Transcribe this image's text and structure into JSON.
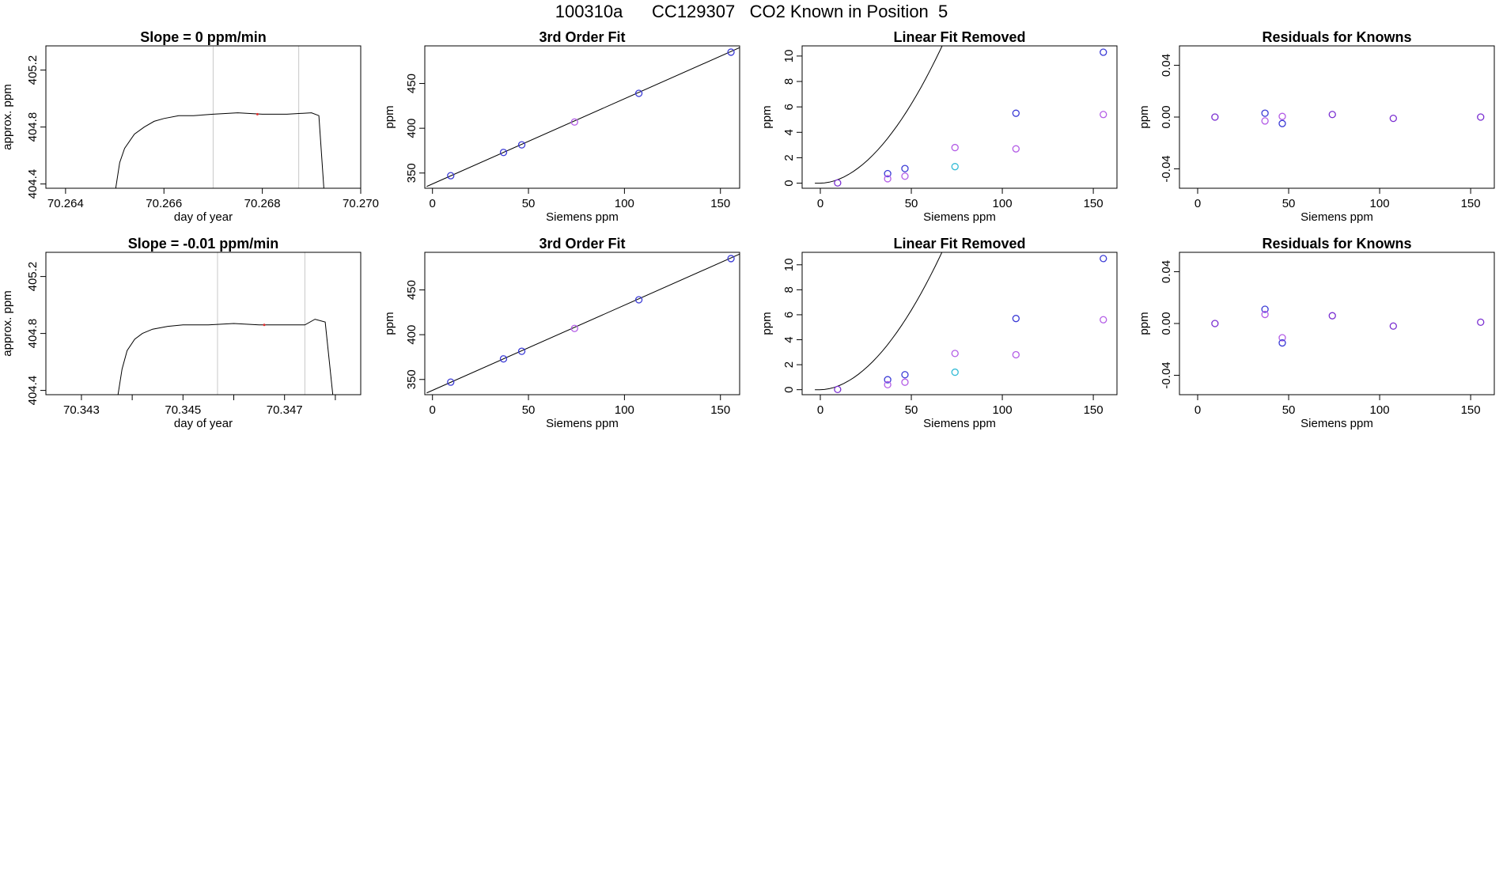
{
  "suptitle": "100310a      CC129307   CO2 Known in Position  5",
  "colors": {
    "blue": "#3b3bd6",
    "violet": "#b35ce6",
    "cyan": "#33bbd6",
    "purple": "#7a2ed1",
    "red": "#e03030",
    "gray": "#c8c8c8"
  },
  "chart_data": [
    {
      "id": "r1c1",
      "type": "line",
      "title": "Slope =  0  ppm/min",
      "xlabel": "day of year",
      "ylabel": "approx. ppm",
      "xlim": [
        70.2636,
        70.27
      ],
      "ylim": [
        404.37,
        405.37
      ],
      "xticks": [
        70.264,
        70.266,
        70.268,
        70.27
      ],
      "xtick_labels": [
        "70.264",
        "70.266",
        "70.268",
        "70.270"
      ],
      "yticks": [
        404.4,
        404.8,
        405.2
      ],
      "ytick_labels": [
        "404.4",
        "404.8",
        "405.2"
      ],
      "vlines": [
        70.267,
        70.26874
      ],
      "series": [
        {
          "x": [
            70.26502,
            70.2651,
            70.2652,
            70.2654,
            70.2656,
            70.2658,
            70.266,
            70.2663,
            70.2666,
            70.267,
            70.2675,
            70.268,
            70.2685,
            70.269,
            70.26915,
            70.26925
          ],
          "y": [
            404.37,
            404.55,
            404.65,
            404.75,
            404.8,
            404.84,
            404.86,
            404.88,
            404.88,
            404.89,
            404.9,
            404.89,
            404.89,
            404.9,
            404.88,
            404.37
          ]
        }
      ],
      "markers": [
        {
          "x": 70.2679,
          "y": 404.89,
          "color": "red"
        }
      ]
    },
    {
      "id": "r1c2",
      "type": "scatter",
      "title": "3rd Order Fit",
      "xlabel": "Siemens ppm",
      "ylabel": "ppm",
      "xlim": [
        -4,
        160
      ],
      "ylim": [
        333,
        492
      ],
      "xticks": [
        0,
        50,
        100,
        150
      ],
      "xtick_labels": [
        "0",
        "50",
        "100",
        "150"
      ],
      "yticks": [
        350,
        400,
        450
      ],
      "ytick_labels": [
        "350",
        "400",
        "450"
      ],
      "fit": {
        "x": [
          -3,
          160
        ],
        "y": [
          335,
          490
        ]
      },
      "points": [
        {
          "x": 9.5,
          "y": 347,
          "color": "blue"
        },
        {
          "x": 37,
          "y": 373,
          "color": "blue"
        },
        {
          "x": 46.5,
          "y": 381.5,
          "color": "blue"
        },
        {
          "x": 74,
          "y": 407,
          "color": "violet"
        },
        {
          "x": 107.5,
          "y": 439,
          "color": "blue"
        },
        {
          "x": 155.5,
          "y": 485,
          "color": "blue"
        }
      ]
    },
    {
      "id": "r1c3",
      "type": "scatter",
      "title": "Linear Fit Removed",
      "xlabel": "Siemens ppm",
      "ylabel": "ppm",
      "xlim": [
        -10,
        163
      ],
      "ylim": [
        -0.4,
        10.8
      ],
      "xticks": [
        0,
        50,
        100,
        150
      ],
      "xtick_labels": [
        "0",
        "50",
        "100",
        "150"
      ],
      "yticks": [
        0,
        2,
        4,
        6,
        8,
        10
      ],
      "ytick_labels": [
        "0",
        "2",
        "4",
        "6",
        "8",
        "10"
      ],
      "fit_power": {
        "from": -3,
        "to": 156,
        "a": 0.0006,
        "b": 0.0034,
        "p": 1.85
      },
      "points": [
        {
          "x": 9.5,
          "y": 0.02,
          "color": "purple"
        },
        {
          "x": 37,
          "y": 0.75,
          "color": "blue"
        },
        {
          "x": 37,
          "y": 0.35,
          "color": "violet"
        },
        {
          "x": 46.5,
          "y": 1.15,
          "color": "blue"
        },
        {
          "x": 46.5,
          "y": 0.55,
          "color": "violet"
        },
        {
          "x": 74,
          "y": 2.8,
          "color": "violet"
        },
        {
          "x": 74,
          "y": 1.3,
          "color": "cyan"
        },
        {
          "x": 107.5,
          "y": 5.5,
          "color": "blue"
        },
        {
          "x": 107.5,
          "y": 2.7,
          "color": "violet"
        },
        {
          "x": 155.5,
          "y": 10.3,
          "color": "blue"
        },
        {
          "x": 155.5,
          "y": 5.4,
          "color": "violet"
        }
      ]
    },
    {
      "id": "r1c4",
      "type": "scatter",
      "title": "Residuals for Knowns",
      "xlabel": "Siemens ppm",
      "ylabel": "ppm",
      "xlim": [
        -10,
        163
      ],
      "ylim": [
        -0.055,
        0.055
      ],
      "xticks": [
        0,
        50,
        100,
        150
      ],
      "xtick_labels": [
        "0",
        "50",
        "100",
        "150"
      ],
      "yticks": [
        -0.04,
        0,
        0.04
      ],
      "ytick_labels": [
        "-0.04",
        "0.00",
        "0.04"
      ],
      "points": [
        {
          "x": 9.5,
          "y": 0.0,
          "color": "purple"
        },
        {
          "x": 37,
          "y": 0.003,
          "color": "blue"
        },
        {
          "x": 37,
          "y": -0.003,
          "color": "violet"
        },
        {
          "x": 46.5,
          "y": 0.0005,
          "color": "violet"
        },
        {
          "x": 46.5,
          "y": -0.005,
          "color": "blue"
        },
        {
          "x": 74,
          "y": 0.002,
          "color": "purple"
        },
        {
          "x": 107.5,
          "y": -0.001,
          "color": "purple"
        },
        {
          "x": 155.5,
          "y": 0.0,
          "color": "purple"
        }
      ]
    },
    {
      "id": "r2c1",
      "type": "line",
      "title": "Slope =  -0.01  ppm/min",
      "xlabel": "day of year",
      "ylabel": "approx. ppm",
      "xlim": [
        70.3423,
        70.3485
      ],
      "ylim": [
        404.37,
        405.37
      ],
      "xticks": [
        70.343,
        70.344,
        70.345,
        70.346,
        70.347,
        70.348
      ],
      "xtick_labels": [
        "70.343",
        "",
        "70.345",
        "",
        "70.347",
        ""
      ],
      "yticks": [
        404.4,
        404.8,
        405.2
      ],
      "ytick_labels": [
        "404.4",
        "404.8",
        "405.2"
      ],
      "vlines": [
        70.34568,
        70.3474
      ],
      "series": [
        {
          "x": [
            70.34372,
            70.3438,
            70.3439,
            70.34405,
            70.3442,
            70.3444,
            70.3447,
            70.345,
            70.3455,
            70.346,
            70.3465,
            70.347,
            70.3474,
            70.3476,
            70.3478,
            70.34795
          ],
          "y": [
            404.37,
            404.55,
            404.68,
            404.76,
            404.8,
            404.83,
            404.85,
            404.86,
            404.86,
            404.87,
            404.86,
            404.86,
            404.86,
            404.9,
            404.88,
            404.37
          ]
        }
      ],
      "markers": [
        {
          "x": 70.3466,
          "y": 404.86,
          "color": "red"
        }
      ]
    },
    {
      "id": "r2c2",
      "type": "scatter",
      "title": "3rd Order Fit",
      "xlabel": "Siemens ppm",
      "ylabel": "ppm",
      "xlim": [
        -4,
        160
      ],
      "ylim": [
        333,
        492
      ],
      "xticks": [
        0,
        50,
        100,
        150
      ],
      "xtick_labels": [
        "0",
        "50",
        "100",
        "150"
      ],
      "yticks": [
        350,
        400,
        450
      ],
      "ytick_labels": [
        "350",
        "400",
        "450"
      ],
      "fit": {
        "x": [
          -3,
          160
        ],
        "y": [
          335,
          490
        ]
      },
      "points": [
        {
          "x": 9.5,
          "y": 347,
          "color": "blue"
        },
        {
          "x": 37,
          "y": 373,
          "color": "blue"
        },
        {
          "x": 46.5,
          "y": 381.5,
          "color": "blue"
        },
        {
          "x": 74,
          "y": 407,
          "color": "violet"
        },
        {
          "x": 107.5,
          "y": 439,
          "color": "blue"
        },
        {
          "x": 155.5,
          "y": 485,
          "color": "blue"
        }
      ]
    },
    {
      "id": "r2c3",
      "type": "scatter",
      "title": "Linear Fit Removed",
      "xlabel": "Siemens ppm",
      "ylabel": "ppm",
      "xlim": [
        -10,
        163
      ],
      "ylim": [
        -0.4,
        11.0
      ],
      "xticks": [
        0,
        50,
        100,
        150
      ],
      "xtick_labels": [
        "0",
        "50",
        "100",
        "150"
      ],
      "yticks": [
        0,
        2,
        4,
        6,
        8,
        10
      ],
      "ytick_labels": [
        "0",
        "2",
        "4",
        "6",
        "8",
        "10"
      ],
      "fit_power": {
        "from": -3,
        "to": 156,
        "a": 0.0006,
        "b": 0.0035,
        "p": 1.85
      },
      "points": [
        {
          "x": 9.5,
          "y": 0.02,
          "color": "purple"
        },
        {
          "x": 37,
          "y": 0.8,
          "color": "blue"
        },
        {
          "x": 37,
          "y": 0.4,
          "color": "violet"
        },
        {
          "x": 46.5,
          "y": 1.2,
          "color": "blue"
        },
        {
          "x": 46.5,
          "y": 0.6,
          "color": "violet"
        },
        {
          "x": 74,
          "y": 2.9,
          "color": "violet"
        },
        {
          "x": 74,
          "y": 1.4,
          "color": "cyan"
        },
        {
          "x": 107.5,
          "y": 5.7,
          "color": "blue"
        },
        {
          "x": 107.5,
          "y": 2.8,
          "color": "violet"
        },
        {
          "x": 155.5,
          "y": 10.5,
          "color": "blue"
        },
        {
          "x": 155.5,
          "y": 5.6,
          "color": "violet"
        }
      ]
    },
    {
      "id": "r2c4",
      "type": "scatter",
      "title": "Residuals for Knowns",
      "xlabel": "Siemens ppm",
      "ylabel": "ppm",
      "xlim": [
        -10,
        163
      ],
      "ylim": [
        -0.055,
        0.055
      ],
      "xticks": [
        0,
        50,
        100,
        150
      ],
      "xtick_labels": [
        "0",
        "50",
        "100",
        "150"
      ],
      "yticks": [
        -0.04,
        0,
        0.04
      ],
      "ytick_labels": [
        "-0.04",
        "0.00",
        "0.04"
      ],
      "points": [
        {
          "x": 9.5,
          "y": 0.0,
          "color": "purple"
        },
        {
          "x": 37,
          "y": 0.011,
          "color": "blue"
        },
        {
          "x": 37,
          "y": 0.007,
          "color": "violet"
        },
        {
          "x": 46.5,
          "y": -0.011,
          "color": "violet"
        },
        {
          "x": 46.5,
          "y": -0.015,
          "color": "blue"
        },
        {
          "x": 74,
          "y": 0.006,
          "color": "purple"
        },
        {
          "x": 107.5,
          "y": -0.002,
          "color": "purple"
        },
        {
          "x": 155.5,
          "y": 0.001,
          "color": "purple"
        }
      ]
    }
  ]
}
